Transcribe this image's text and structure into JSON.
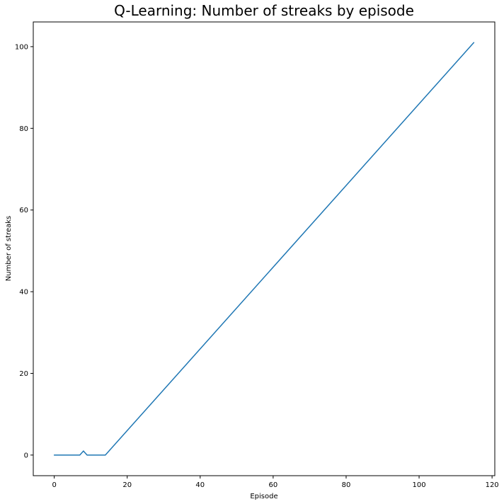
{
  "chart_data": {
    "type": "line",
    "title": "Q-Learning: Number of streaks by episode",
    "xlabel": "Episode",
    "ylabel": "Number of streaks",
    "xlim": [
      -5.75,
      120.75
    ],
    "ylim": [
      -5.05,
      106.05
    ],
    "xticks": [
      0,
      20,
      40,
      60,
      80,
      100,
      120
    ],
    "yticks": [
      0,
      20,
      40,
      60,
      80,
      100
    ],
    "grid": false,
    "series": [
      {
        "color": "#1f77b4",
        "x": [
          0,
          1,
          2,
          3,
          4,
          5,
          6,
          7,
          8,
          9,
          10,
          11,
          12,
          13,
          14,
          15,
          115
        ],
        "y": [
          0,
          0,
          0,
          0,
          0,
          0,
          0,
          0,
          1,
          0,
          0,
          0,
          0,
          0,
          0,
          1,
          101
        ]
      }
    ]
  }
}
